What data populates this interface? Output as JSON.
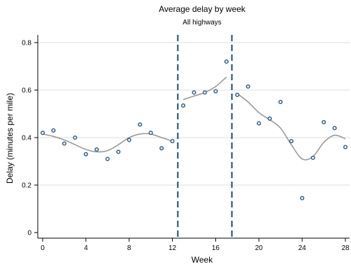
{
  "chart_data": {
    "type": "scatter",
    "title": "Average delay by week",
    "subtitle": "All highways",
    "xlabel": "Week",
    "ylabel": "Delay (minutes per mile)",
    "xlim": [
      0,
      28
    ],
    "ylim": [
      0,
      0.8
    ],
    "x_ticks": [
      0,
      4,
      8,
      12,
      16,
      20,
      24,
      28
    ],
    "y_ticks": [
      0,
      0.2,
      0.4,
      0.6,
      0.8
    ],
    "x_tick_labels": [
      "0",
      "4",
      "8",
      "12",
      "16",
      "20",
      "24",
      "28"
    ],
    "y_tick_labels": [
      "0",
      "0.2",
      "0.4",
      "0.6",
      "0.8"
    ],
    "grid": "horizontal",
    "colors": {
      "points": "#2e5f8a",
      "fit_line": "#999999",
      "vertical_lines": "#1a4a73",
      "grid": "#dddddd",
      "axis": "#000000"
    },
    "series": [
      {
        "type": "scatter",
        "x": [
          0,
          1,
          2,
          3,
          4,
          5,
          6,
          7,
          8,
          9,
          10,
          11,
          12,
          13,
          14,
          15,
          16,
          17,
          18,
          19,
          20,
          21,
          22,
          23,
          24,
          25,
          26,
          27,
          28
        ],
        "y": [
          0.42,
          0.43,
          0.375,
          0.4,
          0.33,
          0.35,
          0.31,
          0.34,
          0.39,
          0.455,
          0.42,
          0.355,
          0.385,
          0.535,
          0.59,
          0.59,
          0.595,
          0.72,
          0.58,
          0.615,
          0.46,
          0.48,
          0.55,
          0.385,
          0.145,
          0.315,
          0.465,
          0.44,
          0.36
        ]
      },
      {
        "type": "line",
        "segment": "pre",
        "x": [
          0,
          1,
          2,
          3,
          4,
          5,
          6,
          7,
          8,
          9,
          10,
          11,
          12
        ],
        "y": [
          0.415,
          0.405,
          0.39,
          0.37,
          0.35,
          0.34,
          0.345,
          0.37,
          0.4,
          0.415,
          0.415,
          0.4,
          0.385
        ]
      },
      {
        "type": "line",
        "segment": "during",
        "x": [
          13,
          14,
          15,
          16,
          17
        ],
        "y": [
          0.56,
          0.575,
          0.59,
          0.615,
          0.655
        ]
      },
      {
        "type": "line",
        "segment": "post",
        "x": [
          18,
          19,
          20,
          21,
          22,
          23,
          24,
          25,
          26,
          27,
          28
        ],
        "y": [
          0.585,
          0.55,
          0.505,
          0.475,
          0.44,
          0.37,
          0.31,
          0.32,
          0.38,
          0.41,
          0.395
        ]
      }
    ],
    "vertical_lines": [
      12.5,
      17.5
    ]
  }
}
